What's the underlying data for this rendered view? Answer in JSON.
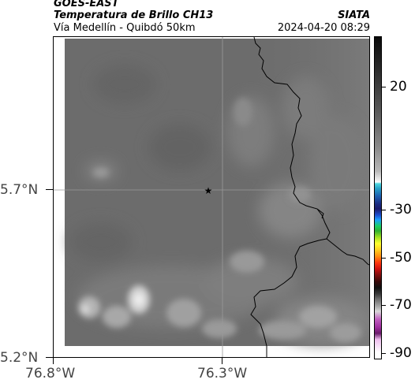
{
  "header": {
    "satellite": "GOES-EAST",
    "product": "Temperatura de Brillo CH13",
    "route": "Vía Medellín - Quibdó 50km",
    "source": "SIATA",
    "datetime": "2024-04-20 08:29"
  },
  "map": {
    "lon_ticks": [
      "76.8°W",
      "76.3°W"
    ],
    "lat_ticks": [
      "5.7°N",
      "5.2°N"
    ],
    "marker_icon": "star-icon",
    "colors": {
      "base_gray": "#6e6e6e",
      "border_line": "#000000",
      "grid_line": "#9a9a9a"
    }
  },
  "colorbar": {
    "tick_labels": [
      "20",
      "-30",
      "-50",
      "-70",
      "-90"
    ]
  }
}
